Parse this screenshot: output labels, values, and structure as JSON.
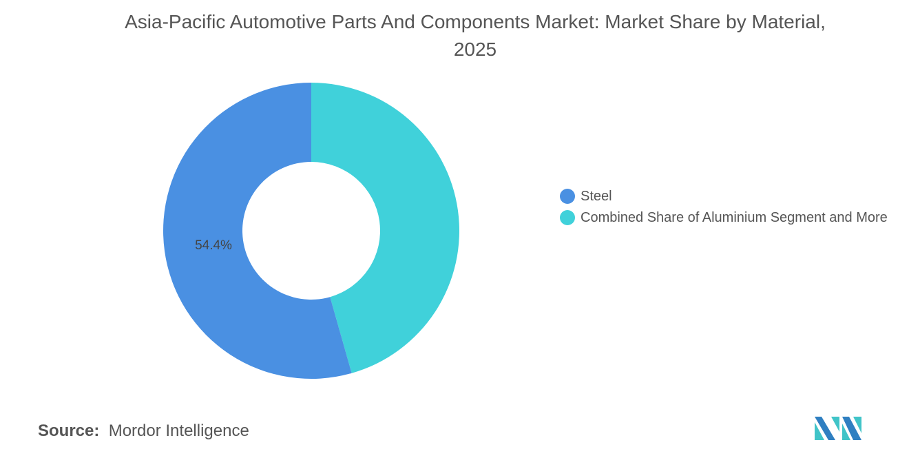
{
  "chart_data": {
    "type": "pie",
    "donut": true,
    "title": "Asia-Pacific Automotive Parts And Components Market: Market Share by Material, 2025",
    "categories": [
      "Steel",
      "Combined Share of Aluminium Segment and More"
    ],
    "values": [
      54.4,
      45.6
    ],
    "colors": [
      "#4a90e2",
      "#40d1da"
    ],
    "data_labels": [
      "54.4%",
      ""
    ],
    "legend_position": "right"
  },
  "source": {
    "label": "Source:",
    "value": "Mordor Intelligence"
  },
  "logo": {
    "colors": [
      "#2f7fc1",
      "#40c4c8"
    ]
  }
}
